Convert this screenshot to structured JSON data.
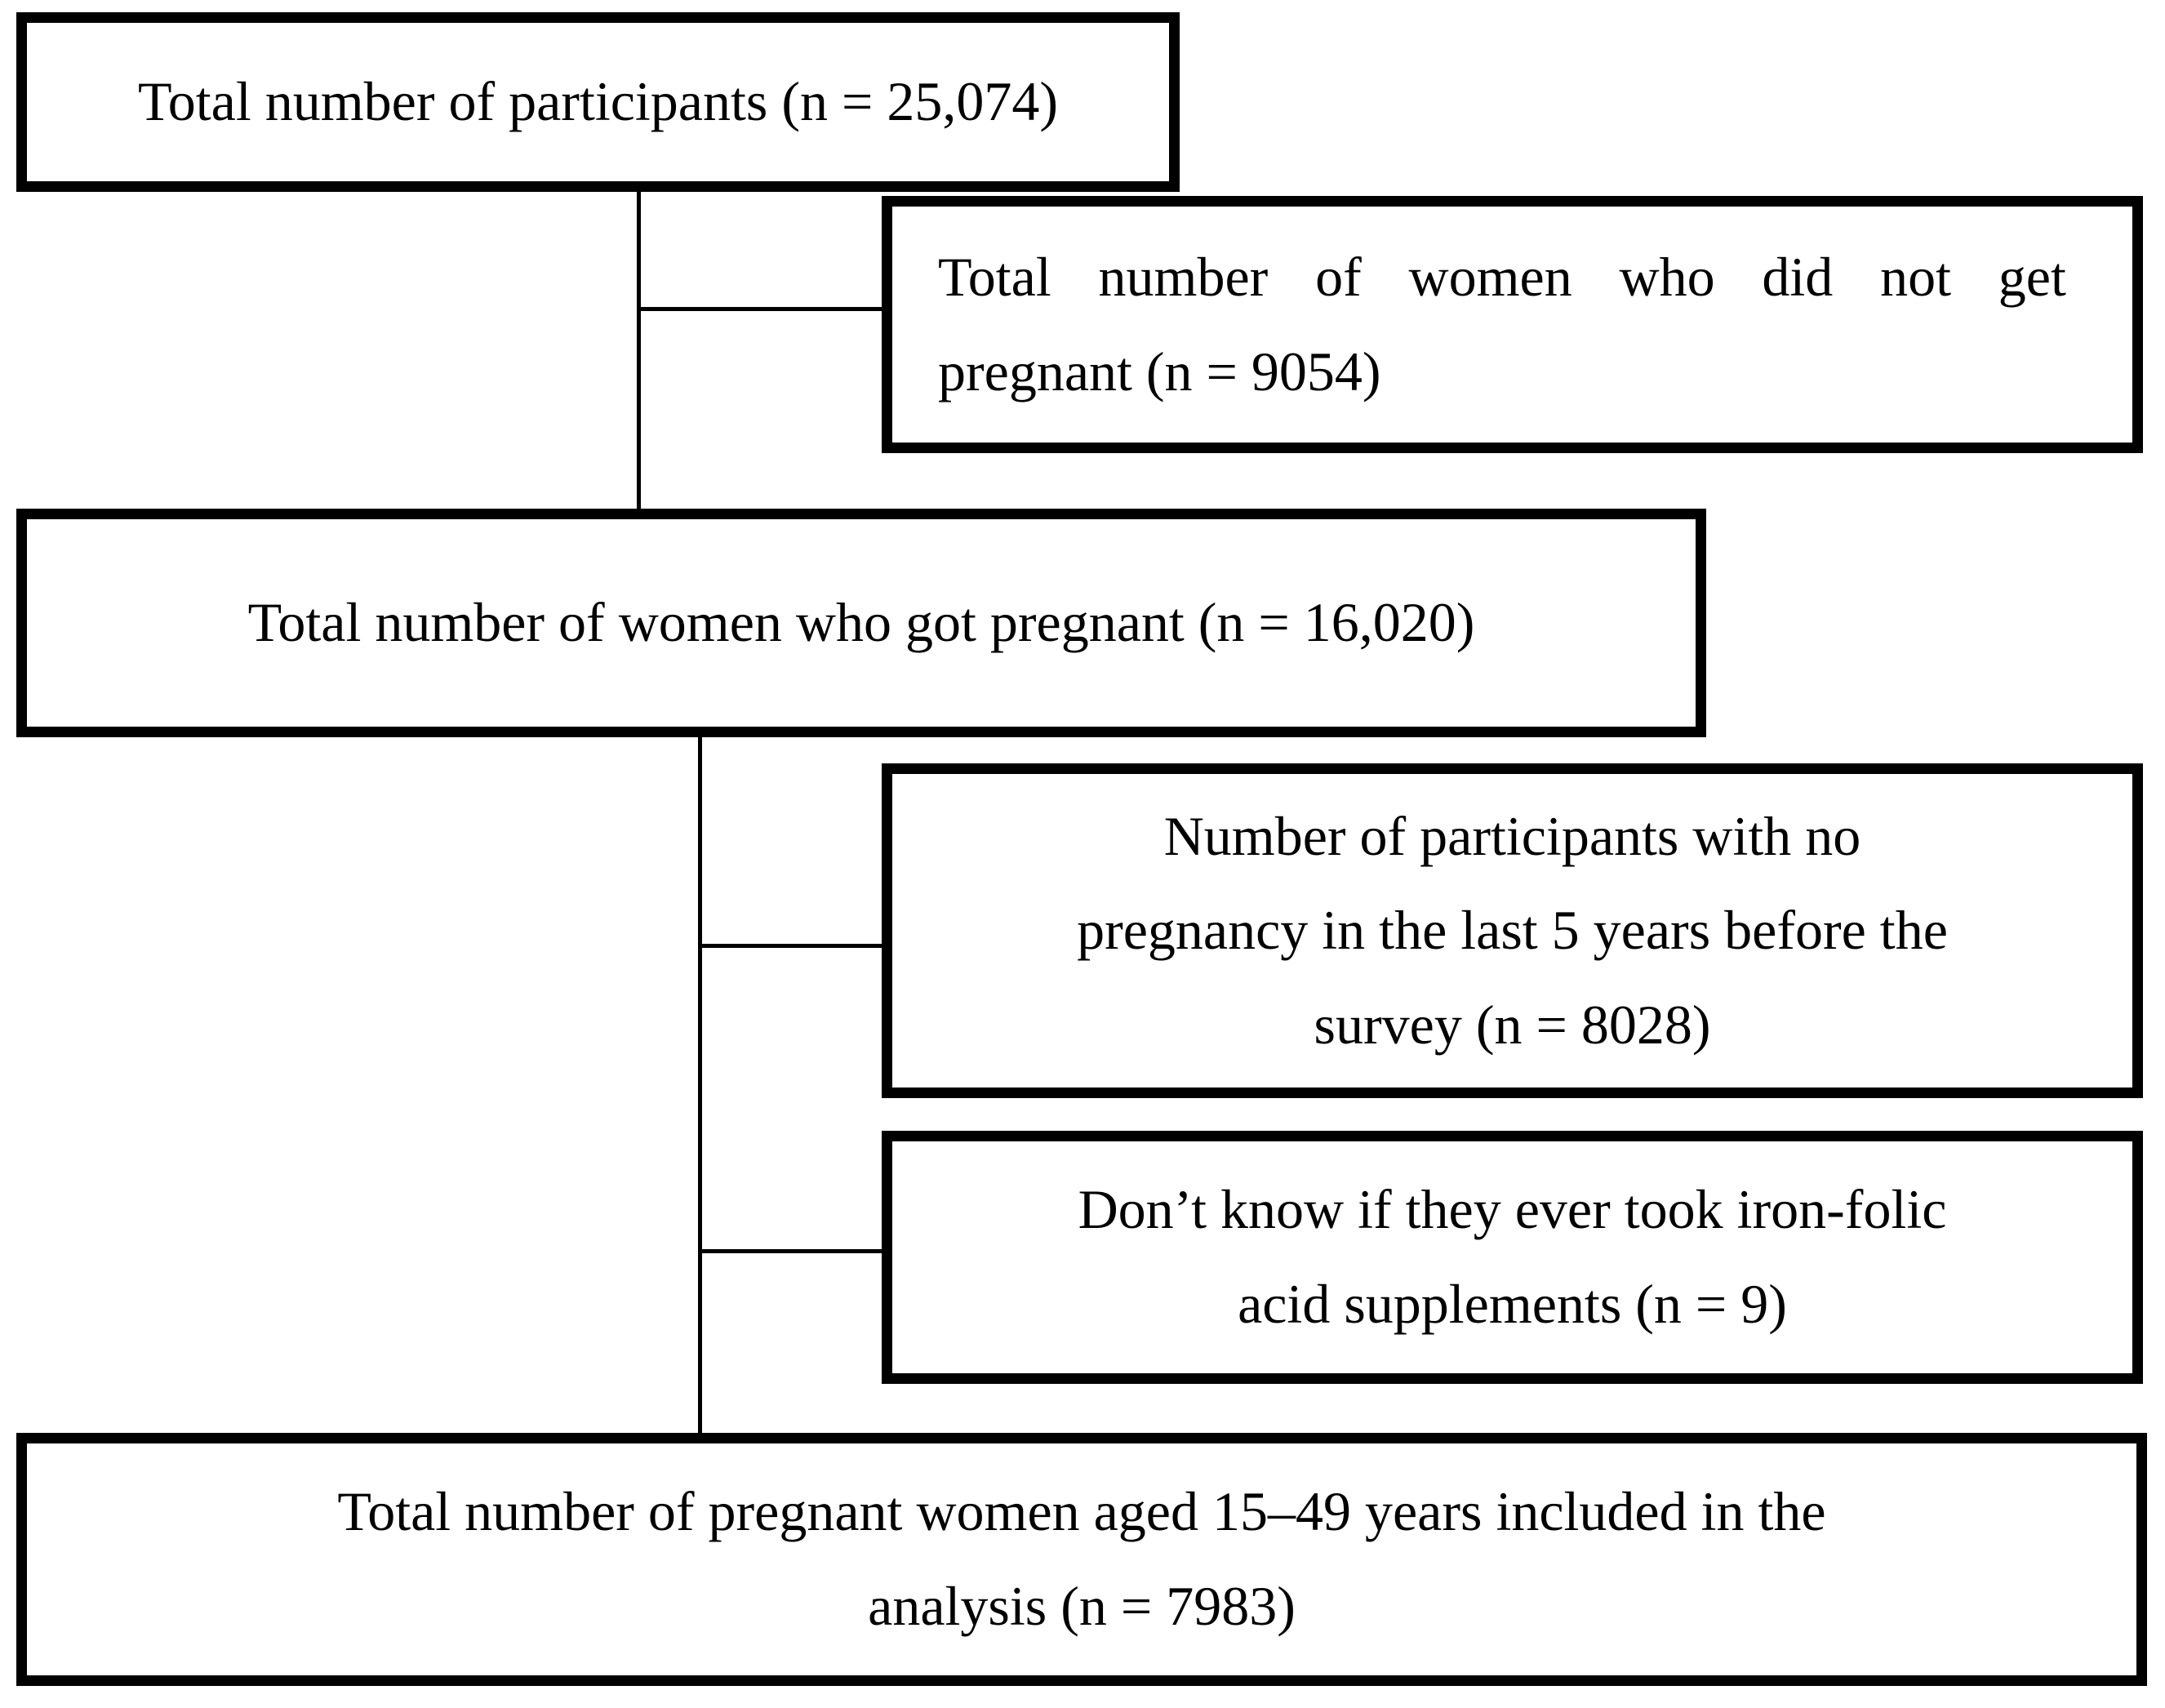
{
  "figure": {
    "type": "participant-flow-diagram",
    "colors": {
      "background": "#ffffff",
      "border": "#000000",
      "text": "#000000"
    },
    "boxes": {
      "total_participants": {
        "lines": [
          "Total number of participants (n = 25,074)"
        ],
        "n": "25,074"
      },
      "not_pregnant": {
        "lines": [
          "Total number of women who did not get",
          "pregnant (n = 9054)"
        ],
        "n": "9054"
      },
      "pregnant": {
        "lines": [
          "Total number of women who got pregnant (n = 16,020)"
        ],
        "n": "16,020"
      },
      "no_pregnancy_last_5_years": {
        "lines": [
          "Number of participants with no",
          "pregnancy in the last 5 years before the",
          "survey (n = 8028)"
        ],
        "n": "8028"
      },
      "dont_know_iron_folic": {
        "lines": [
          "Don’t know if they ever took iron-folic",
          "acid supplements (n = 9)"
        ],
        "n": "9"
      },
      "included_in_analysis": {
        "lines": [
          "Total number of pregnant women aged 15–49 years included in the",
          "analysis (n = 7983)"
        ],
        "n": "7983"
      }
    }
  }
}
